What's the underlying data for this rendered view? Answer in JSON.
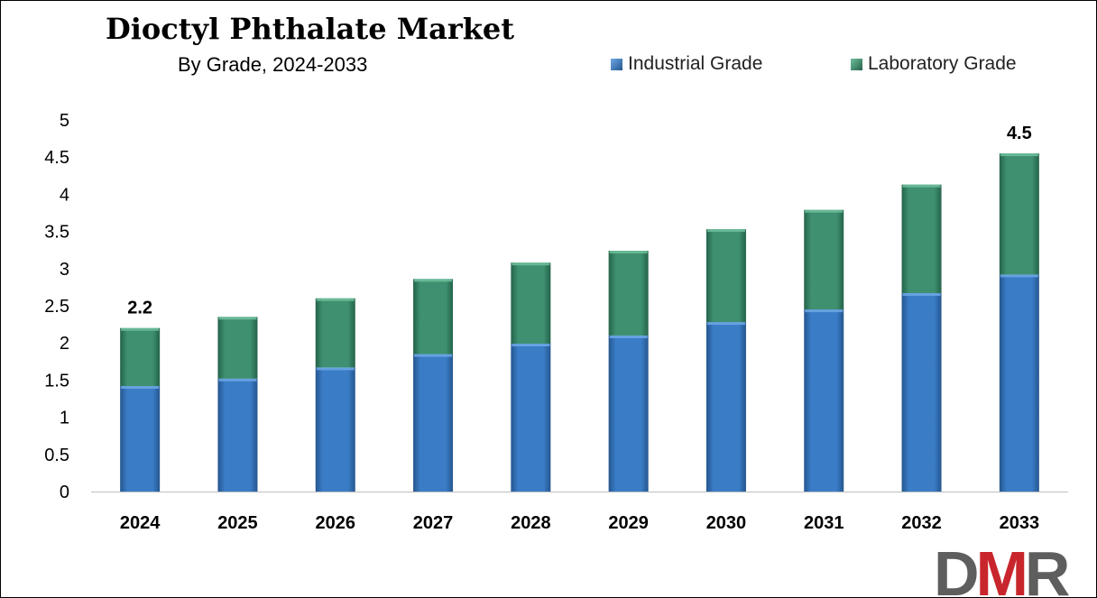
{
  "colors": {
    "industrial": "#3a7dc6",
    "industrial_light": "#6fa8e6",
    "industrial_dark": "#24568f",
    "laboratory": "#3e9070",
    "laboratory_light": "#6fc09c",
    "laboratory_dark": "#24634a",
    "logo_gray": "#5e5e5e",
    "logo_red": "#c8262c"
  },
  "logo": {
    "d": "D",
    "m": "M",
    "r": "R"
  },
  "chart_data": {
    "type": "bar",
    "stacked": true,
    "title": "Dioctyl Phthalate Market",
    "subtitle": "By Grade, 2024-2033",
    "categories": [
      "2024",
      "2025",
      "2026",
      "2027",
      "2028",
      "2029",
      "2030",
      "2031",
      "2032",
      "2033"
    ],
    "series": [
      {
        "name": "Industrial Grade",
        "values": [
          1.42,
          1.52,
          1.67,
          1.85,
          1.99,
          2.1,
          2.28,
          2.45,
          2.67,
          2.92
        ]
      },
      {
        "name": "Laboratory Grade",
        "values": [
          0.78,
          0.83,
          0.93,
          1.01,
          1.09,
          1.14,
          1.25,
          1.34,
          1.46,
          1.63
        ]
      }
    ],
    "data_labels": [
      {
        "category": "2024",
        "text": "2.2"
      },
      {
        "category": "2033",
        "text": "4.5"
      }
    ],
    "ylim": [
      0,
      5
    ],
    "yticks": [
      "0",
      "0.5",
      "1",
      "1.5",
      "2",
      "2.5",
      "3",
      "3.5",
      "4",
      "4.5",
      "5"
    ],
    "xlabel": "",
    "ylabel": "",
    "grid": false,
    "legend_position": "top-right"
  }
}
